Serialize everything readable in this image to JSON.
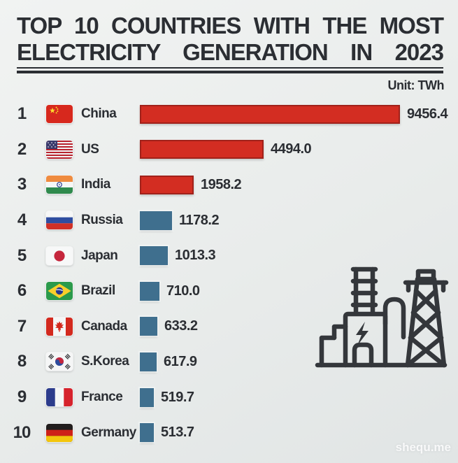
{
  "title": {
    "line1": "TOP 10 COUNTRIES WITH THE MOST",
    "line2": "ELECTRICITY GENERATION IN 2023"
  },
  "unit_label": "Unit: TWh",
  "watermark": "shequ.me",
  "colors": {
    "red_bar": "#d32d22",
    "blue_bar": "#3f6f8e",
    "text": "#2b2e33",
    "background": "#e9eceb"
  },
  "rows": [
    {
      "rank": "1",
      "country": "China",
      "flag": "china",
      "value": 9456.4,
      "value_label": "9456.4",
      "color": "red"
    },
    {
      "rank": "2",
      "country": "US",
      "flag": "us",
      "value": 4494.0,
      "value_label": "4494.0",
      "color": "red"
    },
    {
      "rank": "3",
      "country": "India",
      "flag": "india",
      "value": 1958.2,
      "value_label": "1958.2",
      "color": "red"
    },
    {
      "rank": "4",
      "country": "Russia",
      "flag": "russia",
      "value": 1178.2,
      "value_label": "1178.2",
      "color": "blue"
    },
    {
      "rank": "5",
      "country": "Japan",
      "flag": "japan",
      "value": 1013.3,
      "value_label": "1013.3",
      "color": "blue"
    },
    {
      "rank": "6",
      "country": "Brazil",
      "flag": "brazil",
      "value": 710.0,
      "value_label": "710.0",
      "color": "blue"
    },
    {
      "rank": "7",
      "country": "Canada",
      "flag": "canada",
      "value": 633.2,
      "value_label": "633.2",
      "color": "blue"
    },
    {
      "rank": "8",
      "country": "S.Korea",
      "flag": "korea",
      "value": 617.9,
      "value_label": "617.9",
      "color": "blue"
    },
    {
      "rank": "9",
      "country": "France",
      "flag": "france",
      "value": 519.7,
      "value_label": "519.7",
      "color": "blue"
    },
    {
      "rank": "10",
      "country": "Germany",
      "flag": "germany",
      "value": 513.7,
      "value_label": "513.7",
      "color": "blue"
    }
  ],
  "chart_data": {
    "type": "bar",
    "orientation": "horizontal",
    "title": "TOP 10 COUNTRIES WITH THE MOST ELECTRICITY GENERATION IN 2023",
    "unit": "TWh",
    "categories": [
      "China",
      "US",
      "India",
      "Russia",
      "Japan",
      "Brazil",
      "Canada",
      "S.Korea",
      "France",
      "Germany"
    ],
    "values": [
      9456.4,
      4494.0,
      1958.2,
      1178.2,
      1013.3,
      710.0,
      633.2,
      617.9,
      519.7,
      513.7
    ],
    "ranks": [
      1,
      2,
      3,
      4,
      5,
      6,
      7,
      8,
      9,
      10
    ],
    "bar_colors": [
      "red",
      "red",
      "red",
      "blue",
      "blue",
      "blue",
      "blue",
      "blue",
      "blue",
      "blue"
    ],
    "xlim": [
      0,
      10000
    ],
    "grid": false,
    "legend": "none",
    "value_labels_shown": true
  }
}
